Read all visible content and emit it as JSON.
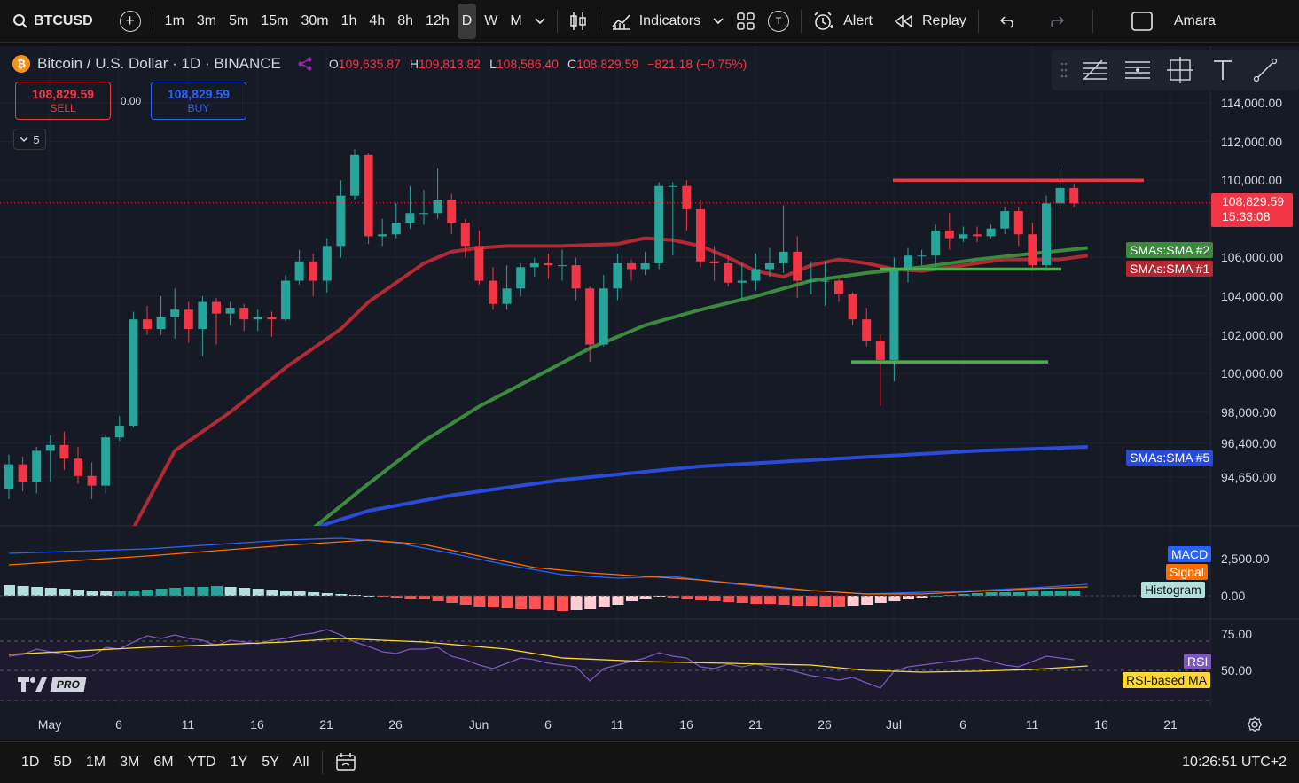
{
  "toolbar": {
    "symbol": "BTCUSD",
    "intervals": [
      "1m",
      "3m",
      "5m",
      "15m",
      "30m",
      "1h",
      "4h",
      "8h",
      "12h",
      "D",
      "W",
      "M"
    ],
    "active_interval": "D",
    "indicators_label": "Indicators",
    "indicator_template_badge": "T",
    "alert_label": "Alert",
    "replay_label": "Replay",
    "user_label": "Amara"
  },
  "legend": {
    "coin_glyph": "₿",
    "title": "Bitcoin / U.S. Dollar · 1D · BINANCE",
    "open_key": "O",
    "open_val": "109,635.87",
    "high_key": "H",
    "high_val": "109,813.82",
    "low_key": "L",
    "low_val": "108,586.40",
    "close_key": "C",
    "close_val": "108,829.59",
    "change": "−821.18 (−0.75%)"
  },
  "trade": {
    "sell_price": "108,829.59",
    "sell_label": "SELL",
    "spread": "0.00",
    "buy_price": "108,829.59",
    "buy_label": "BUY"
  },
  "collapse_count": "5",
  "price_axis": [
    "114,000.00",
    "112,000.00",
    "110,000.00",
    "106,000.00",
    "104,000.00",
    "102,000.00",
    "100,000.00",
    "98,000.00",
    "96,400.00",
    "94,650.00"
  ],
  "last_price": {
    "price": "108,829.59",
    "countdown": "15:33:08"
  },
  "sma_badges": {
    "sma2": "SMAs:SMA #2",
    "sma1": "SMAs:SMA #1",
    "sma5": "SMAs:SMA #5"
  },
  "macd_pane": {
    "macd": "MACD",
    "signal": "Signal",
    "histogram": "Histogram",
    "axis_top": "2,500.00",
    "axis_zero": "0.00"
  },
  "rsi_pane": {
    "rsi": "RSI",
    "rsi_ma": "RSI-based MA",
    "axis_75": "75.00",
    "axis_50": "50.00"
  },
  "logo_pro": "PRO",
  "time_axis": [
    "May",
    "6",
    "11",
    "16",
    "21",
    "26",
    "Jun",
    "6",
    "11",
    "16",
    "21",
    "26",
    "Jul",
    "6",
    "11",
    "16",
    "21"
  ],
  "bottombar": {
    "ranges": [
      "1D",
      "5D",
      "1M",
      "3M",
      "6M",
      "YTD",
      "1Y",
      "5Y",
      "All"
    ],
    "clock": "10:26:51 UTC+2"
  },
  "colors": {
    "bull": "#26a69a",
    "bear": "#f23645",
    "sma1": "#b22833",
    "sma2": "#3b8a3e",
    "sma5": "#2a4bd7",
    "macd": "#2962ff",
    "signal": "#ff6d00",
    "rsi": "#7e57c2",
    "rsi_ma": "#fdd835"
  },
  "candles": [
    [
      94000,
      95300,
      93500,
      95800
    ],
    [
      95300,
      94400,
      93900,
      95700
    ],
    [
      94400,
      96000,
      93800,
      96200
    ],
    [
      96000,
      96300,
      94400,
      96800
    ],
    [
      96300,
      95600,
      95000,
      97000
    ],
    [
      95600,
      94700,
      94300,
      96200
    ],
    [
      94700,
      94200,
      93500,
      95400
    ],
    [
      94200,
      96700,
      93800,
      96800
    ],
    [
      96700,
      97300,
      96500,
      97800
    ],
    [
      97300,
      102800,
      97200,
      103200
    ],
    [
      102800,
      102300,
      102000,
      103500
    ],
    [
      102300,
      102900,
      102000,
      104000
    ],
    [
      102900,
      103300,
      101800,
      104400
    ],
    [
      103300,
      102300,
      101600,
      103700
    ],
    [
      102300,
      103700,
      100900,
      104000
    ],
    [
      103700,
      103100,
      101500,
      103900
    ],
    [
      103100,
      103400,
      102500,
      103700
    ],
    [
      103400,
      102800,
      102200,
      103600
    ],
    [
      102800,
      102900,
      102200,
      103300
    ],
    [
      102900,
      102800,
      101900,
      103200
    ],
    [
      102800,
      104800,
      102700,
      105100
    ],
    [
      104800,
      105800,
      104600,
      106400
    ],
    [
      105800,
      104800,
      104000,
      106200
    ],
    [
      104800,
      106600,
      104200,
      107000
    ],
    [
      106600,
      109200,
      106000,
      110000
    ],
    [
      109200,
      111300,
      109000,
      111600
    ],
    [
      111300,
      107100,
      106700,
      111400
    ],
    [
      107100,
      107200,
      106600,
      108000
    ],
    [
      107200,
      107800,
      107000,
      108800
    ],
    [
      107800,
      108300,
      107500,
      109700
    ],
    [
      108300,
      108300,
      107700,
      109500
    ],
    [
      108300,
      109000,
      108000,
      110600
    ],
    [
      109000,
      107800,
      107200,
      109300
    ],
    [
      107800,
      106600,
      106000,
      108000
    ],
    [
      106600,
      104800,
      104600,
      107400
    ],
    [
      104800,
      103600,
      103300,
      105500
    ],
    [
      103600,
      104400,
      103300,
      105600
    ],
    [
      104400,
      105500,
      104000,
      105700
    ],
    [
      105500,
      105700,
      105000,
      106000
    ],
    [
      105700,
      105600,
      104900,
      106200
    ],
    [
      105600,
      105600,
      104800,
      106400
    ],
    [
      105600,
      104400,
      103800,
      106000
    ],
    [
      104400,
      101500,
      100600,
      104500
    ],
    [
      101500,
      104400,
      101400,
      105100
    ],
    [
      104400,
      105700,
      103800,
      106200
    ],
    [
      105700,
      105400,
      104800,
      105900
    ],
    [
      105400,
      105700,
      105100,
      106300
    ],
    [
      105700,
      109700,
      105400,
      109900
    ],
    [
      109700,
      109700,
      106100,
      109900
    ],
    [
      109700,
      108500,
      107400,
      110000
    ],
    [
      108500,
      105800,
      105500,
      109000
    ],
    [
      105800,
      105700,
      104800,
      106600
    ],
    [
      105700,
      104700,
      104500,
      106100
    ],
    [
      104700,
      104800,
      103800,
      105700
    ],
    [
      104800,
      105400,
      104300,
      106200
    ],
    [
      105400,
      105700,
      105000,
      106500
    ],
    [
      105700,
      106300,
      105200,
      108700
    ],
    [
      106300,
      104800,
      103900,
      107100
    ],
    [
      104800,
      104800,
      104100,
      105800
    ],
    [
      104800,
      104800,
      103500,
      105800
    ],
    [
      104800,
      104100,
      103700,
      104900
    ],
    [
      104100,
      102800,
      102500,
      104200
    ],
    [
      102800,
      101700,
      101400,
      103400
    ],
    [
      101700,
      100700,
      98300,
      102000
    ],
    [
      100700,
      105400,
      99600,
      106000
    ],
    [
      105400,
      106100,
      104700,
      106500
    ],
    [
      106100,
      106100,
      105600,
      106400
    ],
    [
      106100,
      107400,
      105500,
      107700
    ],
    [
      107400,
      107000,
      106400,
      108300
    ],
    [
      107000,
      107200,
      106800,
      107600
    ],
    [
      107200,
      107100,
      106800,
      107600
    ],
    [
      107100,
      107500,
      107000,
      107700
    ],
    [
      107500,
      108400,
      107200,
      108600
    ],
    [
      108400,
      107200,
      106600,
      108600
    ],
    [
      107200,
      105600,
      105300,
      107800
    ],
    [
      105600,
      108800,
      105300,
      109200
    ],
    [
      108800,
      109600,
      108500,
      110600
    ],
    [
      109600,
      108800,
      108600,
      109800
    ]
  ],
  "sma1": [
    null,
    null,
    null,
    null,
    null,
    null,
    null,
    null,
    null,
    null,
    null,
    null,
    null,
    null,
    null,
    null,
    null,
    null,
    null,
    null,
    null,
    null,
    null,
    null,
    null,
    null,
    null,
    null,
    null,
    null,
    null,
    null,
    null,
    null,
    null,
    null,
    null,
    null,
    null,
    null,
    null,
    null,
    null,
    null,
    null,
    null,
    null,
    null,
    null,
    null,
    null,
    null,
    null,
    null,
    null,
    null,
    null,
    null,
    null,
    null,
    null,
    null,
    null,
    null,
    null,
    null,
    null,
    null,
    null,
    null,
    null,
    null,
    null,
    null,
    null,
    null,
    null,
    null
  ],
  "sma1_path": [
    [
      9,
      92000
    ],
    [
      12,
      96000
    ],
    [
      16,
      98000
    ],
    [
      20,
      100300
    ],
    [
      24,
      102300
    ],
    [
      26,
      103700
    ],
    [
      28,
      104700
    ],
    [
      30,
      105700
    ],
    [
      32,
      106300
    ],
    [
      34,
      106500
    ],
    [
      36,
      106600
    ],
    [
      40,
      106600
    ],
    [
      44,
      106700
    ],
    [
      46,
      107000
    ],
    [
      48,
      106900
    ],
    [
      50,
      106600
    ],
    [
      52,
      106000
    ],
    [
      54,
      105300
    ],
    [
      56,
      105000
    ],
    [
      58,
      105600
    ],
    [
      60,
      105900
    ],
    [
      62,
      105700
    ],
    [
      64,
      105400
    ],
    [
      66,
      105300
    ],
    [
      68,
      105500
    ],
    [
      70,
      105700
    ],
    [
      72,
      105900
    ],
    [
      74,
      105900
    ],
    [
      76,
      105900
    ],
    [
      78,
      106100
    ]
  ],
  "sma2_path": [
    [
      22,
      92000
    ],
    [
      26,
      94300
    ],
    [
      30,
      96500
    ],
    [
      34,
      98300
    ],
    [
      38,
      99800
    ],
    [
      42,
      101300
    ],
    [
      46,
      102500
    ],
    [
      50,
      103300
    ],
    [
      54,
      104000
    ],
    [
      58,
      104800
    ],
    [
      62,
      105200
    ],
    [
      66,
      105500
    ],
    [
      70,
      105900
    ],
    [
      74,
      106200
    ],
    [
      78,
      106500
    ]
  ],
  "sma5_path": [
    [
      22,
      92000
    ],
    [
      26,
      92900
    ],
    [
      32,
      93700
    ],
    [
      40,
      94500
    ],
    [
      50,
      95200
    ],
    [
      60,
      95600
    ],
    [
      70,
      96000
    ],
    [
      78,
      96200
    ]
  ],
  "horizontal_lines": [
    {
      "color": "#f23645",
      "x1": 1007,
      "x2": 1290,
      "price": 110000
    },
    {
      "color": "#4caf50",
      "x1": 992,
      "x2": 1197,
      "price": 105400
    },
    {
      "color": "#4caf50",
      "x1": 960,
      "x2": 1182,
      "price": 100600
    }
  ]
}
